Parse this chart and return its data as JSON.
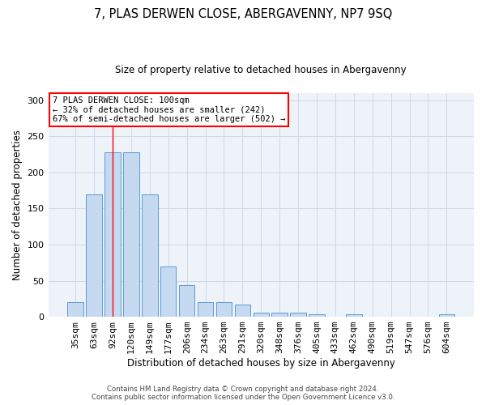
{
  "title1": "7, PLAS DERWEN CLOSE, ABERGAVENNY, NP7 9SQ",
  "title2": "Size of property relative to detached houses in Abergavenny",
  "xlabel": "Distribution of detached houses by size in Abergavenny",
  "ylabel": "Number of detached properties",
  "categories": [
    "35sqm",
    "63sqm",
    "92sqm",
    "120sqm",
    "149sqm",
    "177sqm",
    "206sqm",
    "234sqm",
    "263sqm",
    "291sqm",
    "320sqm",
    "348sqm",
    "376sqm",
    "405sqm",
    "433sqm",
    "462sqm",
    "490sqm",
    "519sqm",
    "547sqm",
    "576sqm",
    "604sqm"
  ],
  "values": [
    20,
    170,
    228,
    228,
    170,
    70,
    44,
    20,
    20,
    17,
    6,
    6,
    6,
    3,
    0,
    4,
    0,
    0,
    0,
    0,
    3
  ],
  "bar_color": "#c5d9f0",
  "bar_edge_color": "#5b9bd5",
  "redline_x": 2.0,
  "annotation_lines": [
    "7 PLAS DERWEN CLOSE: 100sqm",
    "← 32% of detached houses are smaller (242)",
    "67% of semi-detached houses are larger (502) →"
  ],
  "annotation_box_color": "white",
  "annotation_box_edge": "red",
  "footer_line1": "Contains HM Land Registry data © Crown copyright and database right 2024.",
  "footer_line2": "Contains public sector information licensed under the Open Government Licence v3.0.",
  "ylim": [
    0,
    310
  ],
  "yticks": [
    0,
    50,
    100,
    150,
    200,
    250,
    300
  ],
  "grid_color": "#d0d8e8",
  "background_color": "#eef2f9",
  "title1_fontsize": 10.5,
  "title2_fontsize": 8.5,
  "xlabel_fontsize": 8.5,
  "ylabel_fontsize": 8.5,
  "tick_fontsize": 8,
  "footer_fontsize": 6.2,
  "ann_fontsize": 7.5
}
